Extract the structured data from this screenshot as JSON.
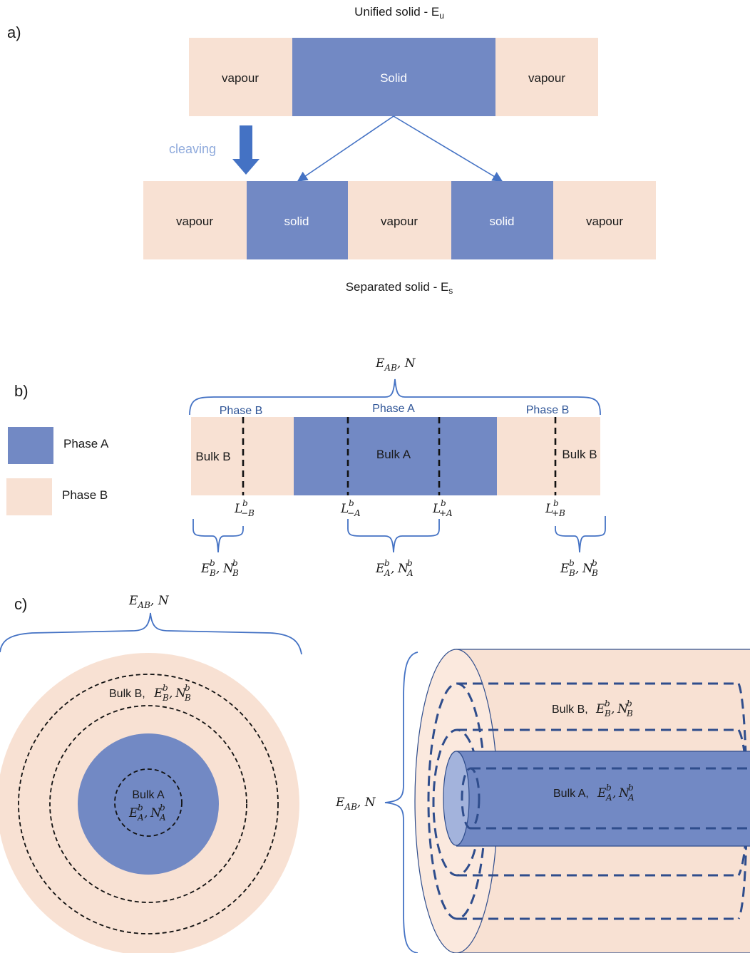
{
  "colors": {
    "phase_a": "#7289c4",
    "phase_b": "#f8e1d3",
    "arrow": "#4472c4",
    "bracket": "#4472c4",
    "cleaving_text": "#8faadc",
    "dash_dark": "#2f4d8c"
  },
  "panel_a": {
    "panel_label": "a)",
    "top_title_main": "Unified solid - E",
    "top_title_sub": "u",
    "top_row": [
      "vapour",
      "Solid",
      "vapour"
    ],
    "cleaving_label": "cleaving",
    "bottom_row": [
      "vapour",
      "solid",
      "vapour",
      "solid",
      "vapour"
    ],
    "bottom_title_main": "Separated solid - E",
    "bottom_title_sub": "s"
  },
  "panel_b": {
    "panel_label": "b)",
    "top_math_main": "E",
    "top_math_sub": "AB",
    "top_math_tail": ", N",
    "phase_labels": [
      "Phase B",
      "Phase A",
      "Phase B"
    ],
    "legend": [
      {
        "label": "Phase A"
      },
      {
        "label": "Phase B"
      }
    ],
    "bulk_labels": [
      "Bulk B",
      "Bulk A",
      "Bulk B"
    ],
    "boundary_labels": [
      {
        "main": "L",
        "sup": "b",
        "sub": "−B"
      },
      {
        "main": "L",
        "sup": "b",
        "sub": "−A"
      },
      {
        "main": "L",
        "sup": "b",
        "sub": "+A"
      },
      {
        "main": "L",
        "sup": "b",
        "sub": "+B"
      }
    ],
    "bracket_labels": [
      {
        "e": "E",
        "n": "N",
        "sup": "b",
        "sub": "B"
      },
      {
        "e": "E",
        "n": "N",
        "sup": "b",
        "sub": "A"
      },
      {
        "e": "E",
        "n": "N",
        "sup": "b",
        "sub": "B"
      }
    ]
  },
  "panel_c": {
    "panel_label": "c)",
    "circle_top_main": "E",
    "circle_top_sub": "AB",
    "circle_top_tail": ", N",
    "circle_bulk_b_text": "Bulk B, ",
    "circle_bulk_a_text": "Bulk A",
    "cyl_side_main": "E",
    "cyl_side_sub": "AB",
    "cyl_side_tail": ", N",
    "cyl_bulk_b_text": "Bulk B, ",
    "cyl_bulk_a_text": "Bulk A, ",
    "sym": {
      "e": "E",
      "n": "N",
      "sup": "b",
      "sub_a": "A",
      "sub_b": "B"
    }
  }
}
